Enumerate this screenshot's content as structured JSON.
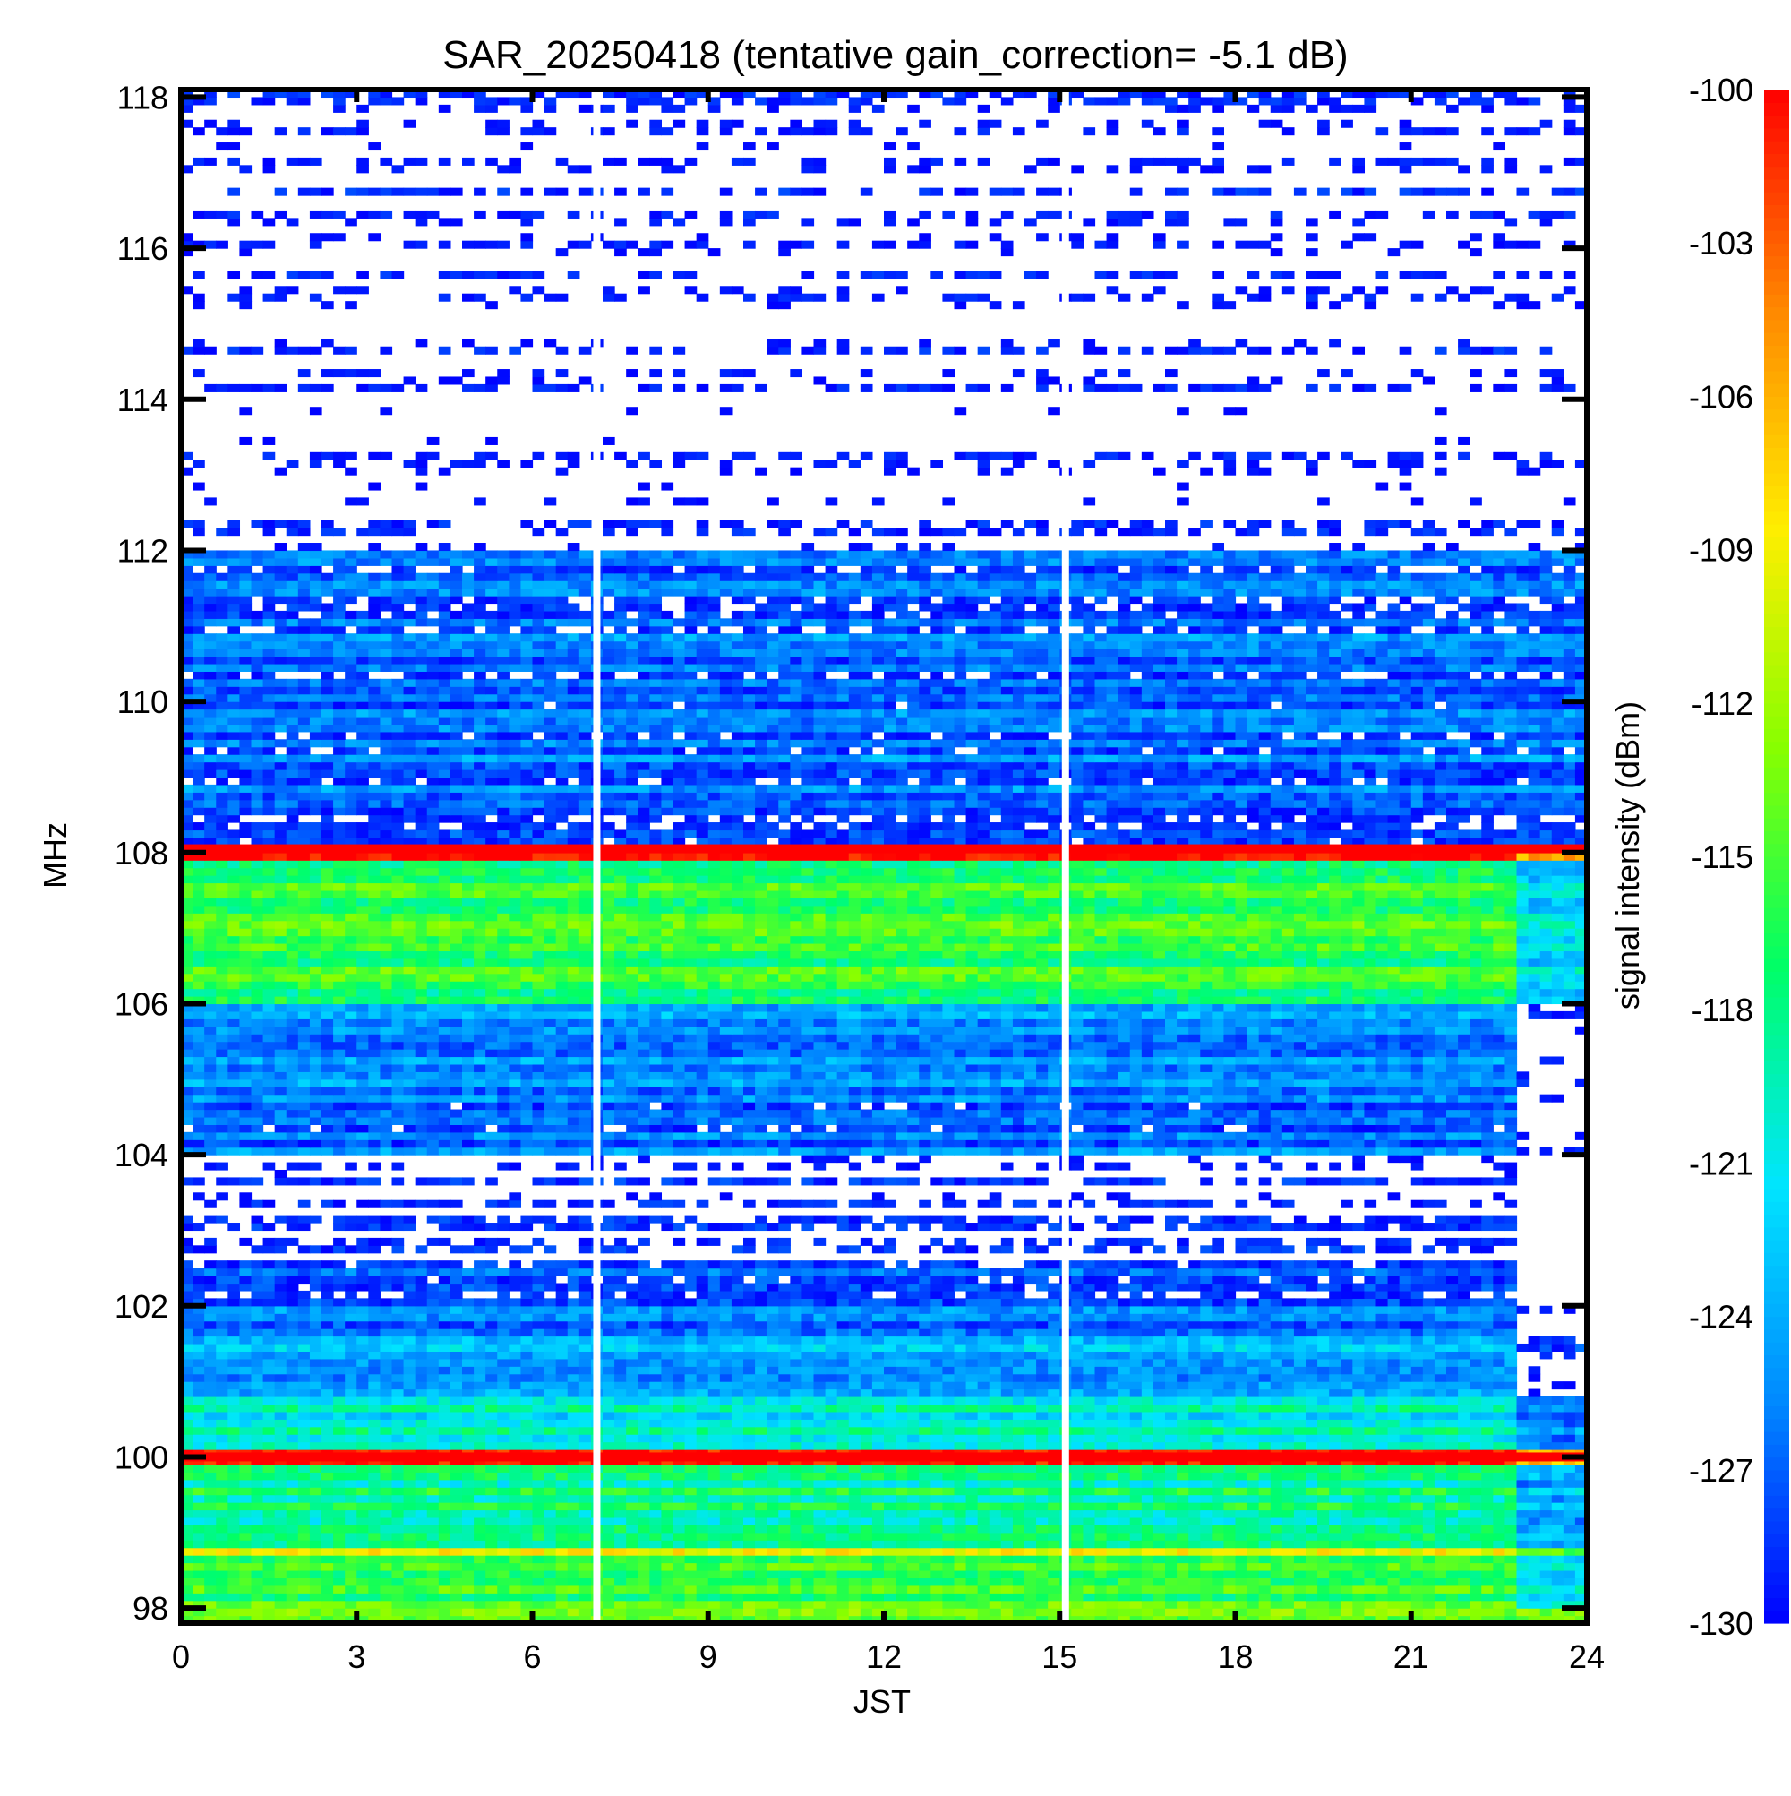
{
  "chart_data": {
    "type": "heatmap",
    "title": "SAR_20250418 (tentative gain_correction= -5.1 dB)",
    "xlabel": "JST",
    "ylabel": "MHz",
    "colorbar_label": "signal intensity (dBm)",
    "xlim": [
      0,
      24
    ],
    "ylim": [
      97.8,
      118.1
    ],
    "clim": [
      -130,
      -100
    ],
    "x_ticks": [
      0,
      3,
      6,
      9,
      12,
      15,
      18,
      21,
      24
    ],
    "y_ticks": [
      98,
      100,
      102,
      104,
      106,
      108,
      110,
      112,
      114,
      116,
      118
    ],
    "colorbar_ticks": [
      -100,
      -103,
      -106,
      -109,
      -112,
      -115,
      -118,
      -121,
      -124,
      -127,
      -130
    ],
    "colormap": [
      "#0000ff",
      "#0088ff",
      "#00e5ff",
      "#00ff66",
      "#88ff00",
      "#ffee00",
      "#ff8800",
      "#ff0000"
    ],
    "background": "#ffffff",
    "data_gaps_jst": [
      7.1,
      15.1
    ],
    "strong_carriers_mhz": [
      100.0,
      108.05
    ],
    "frequency_bands": [
      {
        "from": 97.8,
        "to": 98.3,
        "level": -115
      },
      {
        "from": 98.3,
        "to": 98.7,
        "level": -117
      },
      {
        "from": 98.7,
        "to": 98.8,
        "level": -107
      },
      {
        "from": 98.8,
        "to": 99.9,
        "level": -118
      },
      {
        "from": 99.9,
        "to": 100.1,
        "level": -100
      },
      {
        "from": 100.1,
        "to": 100.8,
        "level": -120
      },
      {
        "from": 100.8,
        "to": 101.6,
        "level": -124
      },
      {
        "from": 101.6,
        "to": 102.6,
        "level": -127
      },
      {
        "from": 102.6,
        "to": 104.0,
        "level": -131
      },
      {
        "from": 104.0,
        "to": 104.8,
        "level": -127
      },
      {
        "from": 104.8,
        "to": 106.0,
        "level": -125
      },
      {
        "from": 106.0,
        "to": 107.9,
        "level": -116
      },
      {
        "from": 107.9,
        "to": 108.1,
        "level": -101
      },
      {
        "from": 108.1,
        "to": 112.0,
        "level": -127
      },
      {
        "from": 112.0,
        "to": 118.1,
        "level": -132
      }
    ]
  }
}
